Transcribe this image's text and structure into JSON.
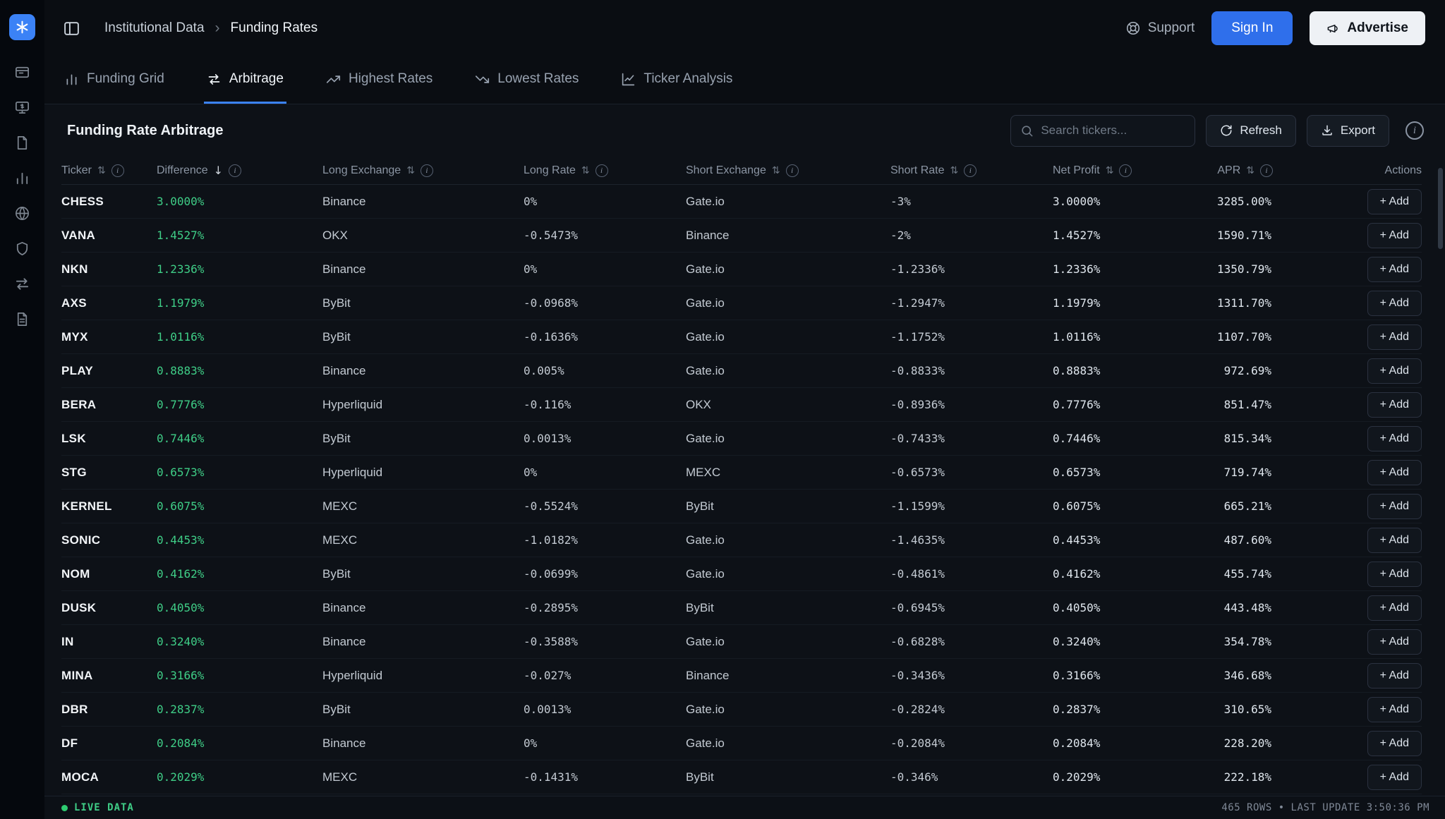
{
  "app": {
    "breadcrumb": [
      "Institutional Data",
      "Funding Rates"
    ],
    "breadcrumb_separator": "›",
    "support_label": "Support",
    "sign_in_label": "Sign In",
    "advertise_label": "Advertise"
  },
  "sidebar": {
    "icons": [
      "logo",
      "dashboard",
      "markets-terminal",
      "reports",
      "analytics",
      "web",
      "security",
      "transfers",
      "documents"
    ]
  },
  "tabs": [
    {
      "label": "Funding Grid",
      "active": false
    },
    {
      "label": "Arbitrage",
      "active": true
    },
    {
      "label": "Highest Rates",
      "active": false
    },
    {
      "label": "Lowest Rates",
      "active": false
    },
    {
      "label": "Ticker Analysis",
      "active": false
    }
  ],
  "toolbar": {
    "title": "Funding Rate Arbitrage",
    "search_placeholder": "Search tickers...",
    "refresh_label": "Refresh",
    "export_label": "Export"
  },
  "glyphs": {
    "sort_both": "⇅",
    "sort_desc": "↓",
    "info": "i"
  },
  "table": {
    "add_label": "+ Add",
    "columns": [
      {
        "key": "ticker",
        "label": "Ticker",
        "sort": "both",
        "info": true,
        "align": "left"
      },
      {
        "key": "difference",
        "label": "Difference",
        "sort": "desc",
        "info": true,
        "align": "left"
      },
      {
        "key": "long_exchange",
        "label": "Long Exchange",
        "sort": "both",
        "info": true,
        "align": "left"
      },
      {
        "key": "long_rate",
        "label": "Long Rate",
        "sort": "both",
        "info": true,
        "align": "left"
      },
      {
        "key": "short_exchange",
        "label": "Short Exchange",
        "sort": "both",
        "info": true,
        "align": "left"
      },
      {
        "key": "short_rate",
        "label": "Short Rate",
        "sort": "both",
        "info": true,
        "align": "left"
      },
      {
        "key": "net_profit",
        "label": "Net Profit",
        "sort": "both",
        "info": true,
        "align": "left"
      },
      {
        "key": "apr",
        "label": "APR",
        "sort": "both",
        "info": true,
        "align": "right"
      },
      {
        "key": "actions",
        "label": "Actions",
        "sort": "none",
        "info": false,
        "align": "right"
      }
    ],
    "rows": [
      {
        "ticker": "CHESS",
        "difference": "3.0000%",
        "long_exchange": "Binance",
        "long_rate": "0%",
        "short_exchange": "Gate.io",
        "short_rate": "-3%",
        "net_profit": "3.0000%",
        "apr": "3285.00%"
      },
      {
        "ticker": "VANA",
        "difference": "1.4527%",
        "long_exchange": "OKX",
        "long_rate": "-0.5473%",
        "short_exchange": "Binance",
        "short_rate": "-2%",
        "net_profit": "1.4527%",
        "apr": "1590.71%"
      },
      {
        "ticker": "NKN",
        "difference": "1.2336%",
        "long_exchange": "Binance",
        "long_rate": "0%",
        "short_exchange": "Gate.io",
        "short_rate": "-1.2336%",
        "net_profit": "1.2336%",
        "apr": "1350.79%"
      },
      {
        "ticker": "AXS",
        "difference": "1.1979%",
        "long_exchange": "ByBit",
        "long_rate": "-0.0968%",
        "short_exchange": "Gate.io",
        "short_rate": "-1.2947%",
        "net_profit": "1.1979%",
        "apr": "1311.70%"
      },
      {
        "ticker": "MYX",
        "difference": "1.0116%",
        "long_exchange": "ByBit",
        "long_rate": "-0.1636%",
        "short_exchange": "Gate.io",
        "short_rate": "-1.1752%",
        "net_profit": "1.0116%",
        "apr": "1107.70%"
      },
      {
        "ticker": "PLAY",
        "difference": "0.8883%",
        "long_exchange": "Binance",
        "long_rate": "0.005%",
        "short_exchange": "Gate.io",
        "short_rate": "-0.8833%",
        "net_profit": "0.8883%",
        "apr": "972.69%"
      },
      {
        "ticker": "BERA",
        "difference": "0.7776%",
        "long_exchange": "Hyperliquid",
        "long_rate": "-0.116%",
        "short_exchange": "OKX",
        "short_rate": "-0.8936%",
        "net_profit": "0.7776%",
        "apr": "851.47%"
      },
      {
        "ticker": "LSK",
        "difference": "0.7446%",
        "long_exchange": "ByBit",
        "long_rate": "0.0013%",
        "short_exchange": "Gate.io",
        "short_rate": "-0.7433%",
        "net_profit": "0.7446%",
        "apr": "815.34%"
      },
      {
        "ticker": "STG",
        "difference": "0.6573%",
        "long_exchange": "Hyperliquid",
        "long_rate": "0%",
        "short_exchange": "MEXC",
        "short_rate": "-0.6573%",
        "net_profit": "0.6573%",
        "apr": "719.74%"
      },
      {
        "ticker": "KERNEL",
        "difference": "0.6075%",
        "long_exchange": "MEXC",
        "long_rate": "-0.5524%",
        "short_exchange": "ByBit",
        "short_rate": "-1.1599%",
        "net_profit": "0.6075%",
        "apr": "665.21%"
      },
      {
        "ticker": "SONIC",
        "difference": "0.4453%",
        "long_exchange": "MEXC",
        "long_rate": "-1.0182%",
        "short_exchange": "Gate.io",
        "short_rate": "-1.4635%",
        "net_profit": "0.4453%",
        "apr": "487.60%"
      },
      {
        "ticker": "NOM",
        "difference": "0.4162%",
        "long_exchange": "ByBit",
        "long_rate": "-0.0699%",
        "short_exchange": "Gate.io",
        "short_rate": "-0.4861%",
        "net_profit": "0.4162%",
        "apr": "455.74%"
      },
      {
        "ticker": "DUSK",
        "difference": "0.4050%",
        "long_exchange": "Binance",
        "long_rate": "-0.2895%",
        "short_exchange": "ByBit",
        "short_rate": "-0.6945%",
        "net_profit": "0.4050%",
        "apr": "443.48%"
      },
      {
        "ticker": "IN",
        "difference": "0.3240%",
        "long_exchange": "Binance",
        "long_rate": "-0.3588%",
        "short_exchange": "Gate.io",
        "short_rate": "-0.6828%",
        "net_profit": "0.3240%",
        "apr": "354.78%"
      },
      {
        "ticker": "MINA",
        "difference": "0.3166%",
        "long_exchange": "Hyperliquid",
        "long_rate": "-0.027%",
        "short_exchange": "Binance",
        "short_rate": "-0.3436%",
        "net_profit": "0.3166%",
        "apr": "346.68%"
      },
      {
        "ticker": "DBR",
        "difference": "0.2837%",
        "long_exchange": "ByBit",
        "long_rate": "0.0013%",
        "short_exchange": "Gate.io",
        "short_rate": "-0.2824%",
        "net_profit": "0.2837%",
        "apr": "310.65%"
      },
      {
        "ticker": "DF",
        "difference": "0.2084%",
        "long_exchange": "Binance",
        "long_rate": "0%",
        "short_exchange": "Gate.io",
        "short_rate": "-0.2084%",
        "net_profit": "0.2084%",
        "apr": "228.20%"
      },
      {
        "ticker": "MOCA",
        "difference": "0.2029%",
        "long_exchange": "MEXC",
        "long_rate": "-0.1431%",
        "short_exchange": "ByBit",
        "short_rate": "-0.346%",
        "net_profit": "0.2029%",
        "apr": "222.18%"
      }
    ]
  },
  "footer": {
    "live_label": "LIVE DATA",
    "status_right": "465 ROWS • LAST UPDATE 3:50:36 PM"
  },
  "colors": {
    "accent_blue": "#2f6feb",
    "positive_green": "#3fce87",
    "background": "#0d1117"
  }
}
